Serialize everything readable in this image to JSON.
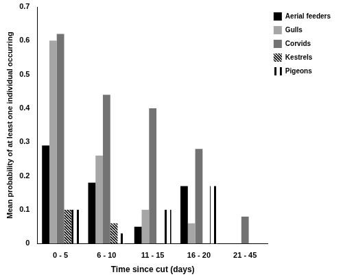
{
  "chart_data": {
    "type": "bar",
    "xlabel": "Time since cut (days)",
    "ylabel": "Mean probability of at least one individual occurring",
    "categories": [
      "0 - 5",
      "6 - 10",
      "11 - 15",
      "16 - 20",
      "21 - 45"
    ],
    "series": [
      {
        "name": "Aerial feeders",
        "color": "#000000",
        "values": [
          0.29,
          0.18,
          0.05,
          0.17,
          0
        ]
      },
      {
        "name": "Gulls",
        "color": "#a6a6a6",
        "values": [
          0.6,
          0.26,
          0.1,
          0.06,
          0
        ]
      },
      {
        "name": "Corvids",
        "color": "#737373",
        "values": [
          0.62,
          0.44,
          0.4,
          0.28,
          0.08
        ]
      },
      {
        "name": "Kestrels",
        "color": "#000000",
        "marker": "diagonal_hatch",
        "values": [
          0.1,
          0.06,
          0,
          0,
          0
        ]
      },
      {
        "name": "Pigeons",
        "color": "#000000",
        "marker": "vertical_hatch",
        "values": [
          0.1,
          0.03,
          0.1,
          0.17,
          0
        ]
      }
    ],
    "ylim": [
      0,
      0.7
    ],
    "yticks": [
      0,
      0.1,
      0.2,
      0.3,
      0.4,
      0.5,
      0.6,
      0.7
    ],
    "grid": false,
    "legend": "top right"
  }
}
